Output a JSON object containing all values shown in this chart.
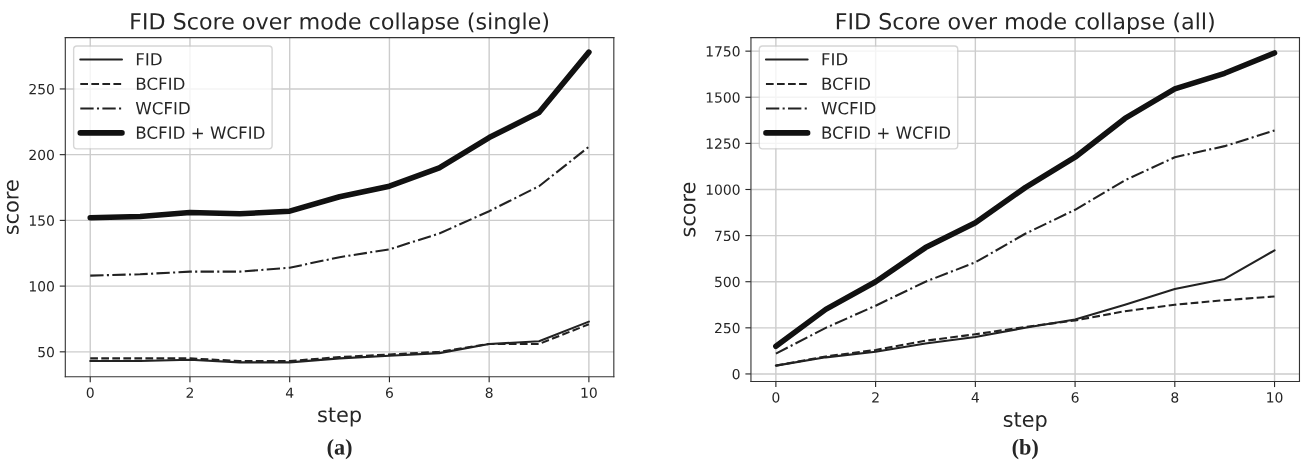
{
  "chart_data": [
    {
      "type": "line",
      "title": "FID Score over mode collapse (single)",
      "xlabel": "step",
      "ylabel": "score",
      "annotations": [
        "(a)"
      ],
      "x": [
        0,
        1,
        2,
        3,
        4,
        5,
        6,
        7,
        8,
        9,
        10
      ],
      "series": [
        {
          "name": "FID",
          "color": "#222222",
          "line_style": "solid",
          "values": [
            43,
            43,
            44,
            42,
            42,
            45,
            47,
            49,
            56,
            58,
            73
          ]
        },
        {
          "name": "BCFID",
          "color": "#222222",
          "line_style": "dashed",
          "values": [
            45,
            45,
            45,
            43,
            43,
            46,
            48,
            50,
            56,
            56,
            71
          ]
        },
        {
          "name": "WCFID",
          "color": "#222222",
          "line_style": "dashdot",
          "values": [
            108,
            109,
            111,
            111,
            114,
            122,
            128,
            140,
            157,
            176,
            206
          ]
        },
        {
          "name": "BCFID + WCFID",
          "color": "#111111",
          "line_style": "solid",
          "values": [
            152,
            153,
            156,
            155,
            157,
            168,
            176,
            190,
            213,
            232,
            278
          ]
        }
      ],
      "xlim": [
        -0.5,
        10.5
      ],
      "xticks": [
        0,
        2,
        4,
        6,
        8,
        10
      ],
      "ylim": [
        31,
        289
      ],
      "yticks": [
        50,
        100,
        150,
        200,
        250
      ],
      "grid": true,
      "legend": "top left"
    },
    {
      "type": "line",
      "title": "FID Score over mode collapse (all)",
      "xlabel": "step",
      "ylabel": "score",
      "annotations": [
        "(b)"
      ],
      "x": [
        0,
        1,
        2,
        3,
        4,
        5,
        6,
        7,
        8,
        9,
        10
      ],
      "series": [
        {
          "name": "FID",
          "color": "#222222",
          "line_style": "solid",
          "values": [
            45,
            90,
            120,
            165,
            200,
            250,
            295,
            375,
            460,
            515,
            670
          ]
        },
        {
          "name": "BCFID",
          "color": "#222222",
          "line_style": "dashed",
          "values": [
            45,
            95,
            130,
            180,
            215,
            255,
            290,
            340,
            375,
            400,
            420
          ]
        },
        {
          "name": "WCFID",
          "color": "#222222",
          "line_style": "dashdot",
          "values": [
            110,
            250,
            370,
            500,
            605,
            760,
            890,
            1050,
            1175,
            1235,
            1320
          ]
        },
        {
          "name": "BCFID + WCFID",
          "color": "#111111",
          "line_style": "solid",
          "values": [
            150,
            350,
            500,
            685,
            820,
            1010,
            1175,
            1385,
            1545,
            1630,
            1740
          ]
        }
      ],
      "xlim": [
        -0.5,
        10.5
      ],
      "xticks": [
        0,
        2,
        4,
        6,
        8,
        10
      ],
      "ylim": [
        -41,
        1823
      ],
      "yticks": [
        0,
        250,
        500,
        750,
        1000,
        1250,
        1500,
        1750
      ],
      "grid": true,
      "legend": "top left"
    }
  ]
}
